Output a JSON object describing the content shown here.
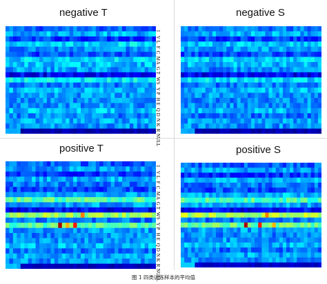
{
  "caption": "图 1  四类训练样本的平均值",
  "row_labels": [
    "I",
    "V",
    "L",
    "F",
    "C",
    "M",
    "A",
    "G",
    "T",
    "W",
    "S",
    "Y",
    "P",
    "H",
    "E",
    "Q",
    "D",
    "N",
    "K",
    "R",
    "NULL"
  ],
  "colormap": [
    "#00007f",
    "#0000ff",
    "#0080ff",
    "#00ffff",
    "#80ff80",
    "#ffff00",
    "#ff8000",
    "#ff0000",
    "#7f0000"
  ],
  "chart_data": [
    {
      "type": "heatmap",
      "title": "negative T",
      "rows": 21,
      "cols": 40,
      "row_means": [
        0.22,
        0.3,
        0.18,
        0.34,
        0.26,
        0.2,
        0.33,
        0.31,
        0.28,
        0.12,
        0.36,
        0.24,
        0.3,
        0.28,
        0.26,
        0.27,
        0.32,
        0.25,
        0.29,
        0.27,
        0.05
      ]
    },
    {
      "type": "heatmap",
      "title": "negative S",
      "rows": 21,
      "cols": 40,
      "row_means": [
        0.24,
        0.3,
        0.18,
        0.32,
        0.28,
        0.2,
        0.33,
        0.31,
        0.26,
        0.12,
        0.34,
        0.24,
        0.3,
        0.27,
        0.26,
        0.27,
        0.3,
        0.24,
        0.28,
        0.27,
        0.05
      ]
    },
    {
      "type": "heatmap",
      "title": "positive T",
      "rows": 21,
      "cols": 40,
      "row_means": [
        0.22,
        0.28,
        0.18,
        0.3,
        0.24,
        0.2,
        0.3,
        0.46,
        0.28,
        0.12,
        0.52,
        0.24,
        0.46,
        0.28,
        0.26,
        0.27,
        0.3,
        0.24,
        0.29,
        0.27,
        0.06
      ],
      "hotspots": [
        {
          "row": 12,
          "col": 14,
          "value": 0.95
        },
        {
          "row": 12,
          "col": 18,
          "value": 0.85
        },
        {
          "row": 12,
          "col": 16,
          "value": 0.7
        },
        {
          "row": 10,
          "col": 20,
          "value": 0.75
        }
      ]
    },
    {
      "type": "heatmap",
      "title": "positive S",
      "rows": 21,
      "cols": 40,
      "row_means": [
        0.22,
        0.28,
        0.18,
        0.3,
        0.24,
        0.2,
        0.3,
        0.44,
        0.28,
        0.12,
        0.54,
        0.24,
        0.48,
        0.28,
        0.26,
        0.27,
        0.3,
        0.24,
        0.29,
        0.27,
        0.07
      ],
      "hotspots": [
        {
          "row": 12,
          "col": 18,
          "value": 0.95
        },
        {
          "row": 12,
          "col": 22,
          "value": 0.85
        },
        {
          "row": 10,
          "col": 24,
          "value": 0.75
        },
        {
          "row": 12,
          "col": 26,
          "value": 0.7
        }
      ]
    }
  ]
}
